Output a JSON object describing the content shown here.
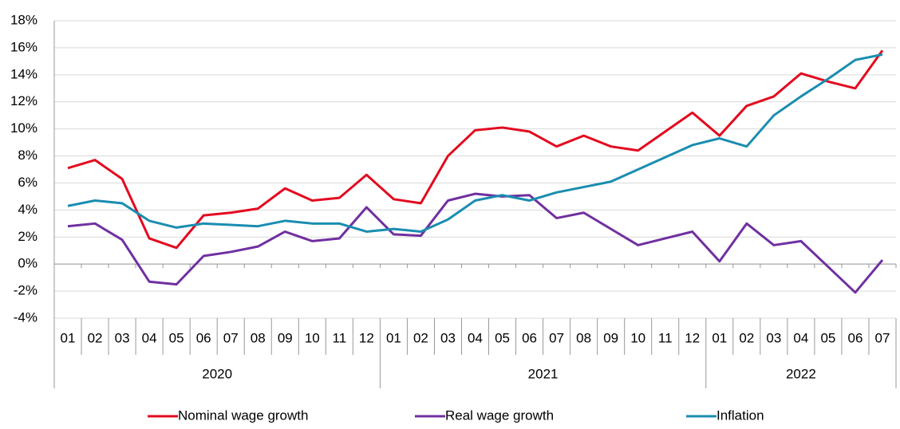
{
  "chart_data": {
    "type": "line",
    "groups": [
      {
        "label": "2020",
        "categories": [
          "01",
          "02",
          "03",
          "04",
          "05",
          "06",
          "07",
          "08",
          "09",
          "10",
          "11",
          "12"
        ]
      },
      {
        "label": "2021",
        "categories": [
          "01",
          "02",
          "03",
          "04",
          "05",
          "06",
          "07",
          "08",
          "09",
          "10",
          "11",
          "12"
        ]
      },
      {
        "label": "2022",
        "categories": [
          "01",
          "02",
          "03",
          "04",
          "05",
          "06",
          "07"
        ]
      }
    ],
    "series": [
      {
        "name": "Nominal wage growth",
        "color": "#e30a1f",
        "values": [
          7.1,
          7.7,
          6.3,
          1.9,
          1.2,
          3.6,
          3.8,
          4.1,
          5.6,
          4.7,
          4.9,
          6.6,
          4.8,
          4.5,
          8.0,
          9.9,
          10.1,
          9.8,
          8.7,
          9.5,
          8.7,
          8.4,
          9.8,
          11.2,
          9.5,
          11.7,
          12.4,
          14.1,
          13.5,
          13.0,
          15.8
        ]
      },
      {
        "name": "Real wage growth",
        "color": "#7030a0",
        "values": [
          2.8,
          3.0,
          1.8,
          -1.3,
          -1.5,
          0.6,
          0.9,
          1.3,
          2.4,
          1.7,
          1.9,
          4.2,
          2.2,
          2.1,
          4.7,
          5.2,
          5.0,
          5.1,
          3.4,
          3.8,
          2.6,
          1.4,
          1.9,
          2.4,
          0.2,
          3.0,
          1.4,
          1.7,
          -0.2,
          -2.1,
          0.3
        ]
      },
      {
        "name": "Inflation",
        "color": "#1a8db0",
        "values": [
          4.3,
          4.7,
          4.5,
          3.2,
          2.7,
          3.0,
          2.9,
          2.8,
          3.2,
          3.0,
          3.0,
          2.4,
          2.6,
          2.4,
          3.3,
          4.7,
          5.1,
          4.7,
          5.3,
          5.7,
          6.1,
          7.0,
          7.9,
          8.8,
          9.3,
          8.7,
          11.0,
          12.4,
          13.7,
          15.1,
          15.5
        ]
      }
    ],
    "ylim": [
      -4,
      18
    ],
    "yticks": [
      {
        "value": -4,
        "label": "-4%"
      },
      {
        "value": -2,
        "label": "-2%"
      },
      {
        "value": 0,
        "label": "0%"
      },
      {
        "value": 2,
        "label": "2%"
      },
      {
        "value": 4,
        "label": "4%"
      },
      {
        "value": 6,
        "label": "6%"
      },
      {
        "value": 8,
        "label": "8%"
      },
      {
        "value": 10,
        "label": "10%"
      },
      {
        "value": 12,
        "label": "12%"
      },
      {
        "value": 14,
        "label": "14%"
      },
      {
        "value": 16,
        "label": "16%"
      },
      {
        "value": 18,
        "label": "18%"
      }
    ],
    "grid": true,
    "legend": "bottom"
  }
}
